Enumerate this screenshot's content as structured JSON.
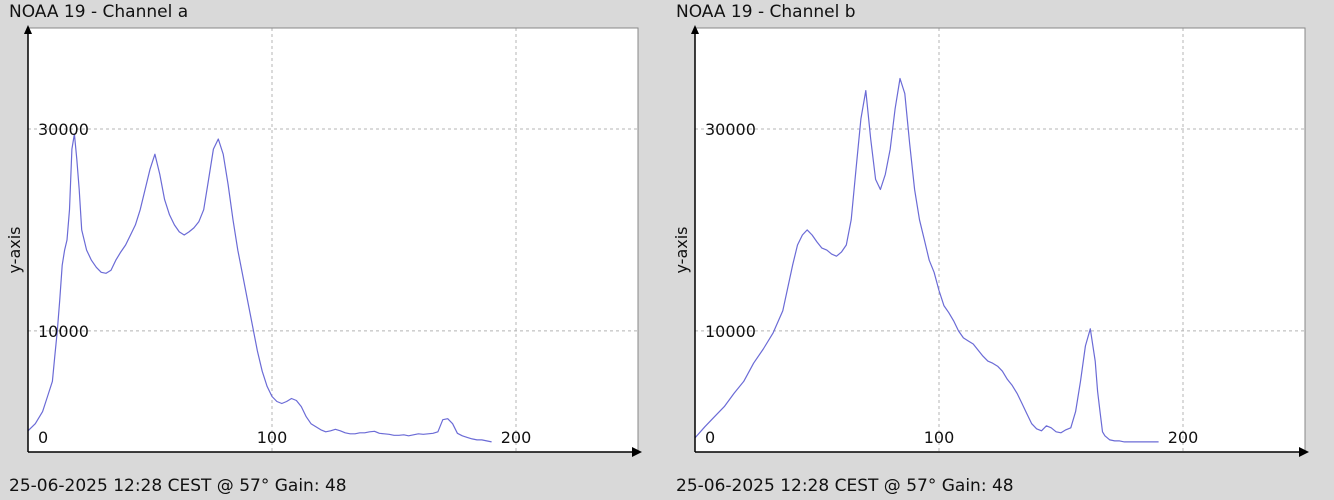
{
  "chart_data": [
    {
      "type": "line",
      "title": "NOAA 19 - Channel a",
      "footer": "25-06-2025 12:28 CEST @ 57° Gain: 48",
      "ylabel": "y-axis",
      "xlabel": "",
      "xlim": [
        0,
        250
      ],
      "ylim": [
        -2000,
        40000
      ],
      "xticks": [
        0,
        100,
        200
      ],
      "yticks": [
        10000,
        30000
      ],
      "xtick_labels": [
        "0",
        "100",
        "200"
      ],
      "ytick_labels": [
        "10000",
        "30000"
      ],
      "grid": true,
      "line_color": "#6b6bd6",
      "series": [
        {
          "x": [
            0,
            3,
            6,
            8,
            10,
            11,
            12,
            13,
            14,
            15,
            16,
            17,
            18,
            19,
            20,
            21,
            22,
            24,
            26,
            28,
            30,
            32,
            34,
            36,
            38,
            40,
            42,
            44,
            46,
            48,
            50,
            52,
            54,
            56,
            58,
            60,
            62,
            64,
            66,
            68,
            70,
            72,
            74,
            76,
            78,
            80,
            82,
            84,
            86,
            88,
            90,
            92,
            94,
            96,
            98,
            100,
            102,
            104,
            106,
            108,
            110,
            112,
            114,
            116,
            118,
            120,
            122,
            124,
            126,
            128,
            130,
            132,
            134,
            136,
            138,
            140,
            142,
            144,
            146,
            148,
            150,
            152,
            154,
            156,
            158,
            160,
            162,
            164,
            166,
            168,
            170,
            172,
            174,
            176,
            178,
            180,
            182,
            184,
            186,
            188,
            190
          ],
          "y": [
            100,
            800,
            2000,
            3500,
            5000,
            7500,
            10000,
            13000,
            16500,
            18000,
            19000,
            22000,
            28000,
            29500,
            27000,
            24000,
            20000,
            18000,
            17000,
            16300,
            15800,
            15700,
            16000,
            17000,
            17800,
            18500,
            19500,
            20500,
            22000,
            24000,
            26000,
            27500,
            25500,
            23000,
            21500,
            20500,
            19800,
            19500,
            19800,
            20200,
            20800,
            22000,
            25000,
            28000,
            29000,
            27500,
            24500,
            21000,
            18000,
            15500,
            13000,
            10500,
            8000,
            6000,
            4500,
            3500,
            3000,
            2800,
            3000,
            3300,
            3100,
            2500,
            1500,
            800,
            500,
            200,
            0,
            100,
            250,
            100,
            -100,
            -200,
            -200,
            -100,
            -100,
            0,
            50,
            -150,
            -200,
            -250,
            -350,
            -350,
            -300,
            -400,
            -300,
            -200,
            -250,
            -200,
            -150,
            0,
            1200,
            1300,
            800,
            -150,
            -400,
            -550,
            -700,
            -800,
            -800,
            -900,
            -1000
          ]
        }
      ]
    },
    {
      "type": "line",
      "title": "NOAA 19 - Channel b",
      "footer": "25-06-2025 12:28 CEST @ 57° Gain: 48",
      "ylabel": "y-axis",
      "xlabel": "",
      "xlim": [
        0,
        250
      ],
      "ylim": [
        -2000,
        40000
      ],
      "xticks": [
        0,
        100,
        200
      ],
      "yticks": [
        10000,
        30000
      ],
      "xtick_labels": [
        "0",
        "100",
        "200"
      ],
      "ytick_labels": [
        "10000",
        "30000"
      ],
      "grid": true,
      "line_color": "#6b6bd6",
      "series": [
        {
          "x": [
            0,
            4,
            8,
            12,
            16,
            20,
            24,
            28,
            32,
            36,
            40,
            42,
            44,
            46,
            48,
            50,
            52,
            54,
            56,
            58,
            60,
            62,
            64,
            66,
            68,
            70,
            72,
            74,
            76,
            78,
            80,
            82,
            84,
            86,
            88,
            90,
            92,
            94,
            96,
            98,
            100,
            102,
            104,
            106,
            108,
            110,
            112,
            114,
            116,
            118,
            120,
            122,
            124,
            126,
            128,
            130,
            132,
            134,
            136,
            138,
            140,
            142,
            144,
            146,
            148,
            150,
            152,
            154,
            156,
            158,
            160,
            162,
            164,
            165,
            166,
            167,
            168,
            170,
            172,
            174,
            176,
            178,
            180,
            185,
            190
          ],
          "y": [
            -600,
            500,
            1500,
            2500,
            3800,
            5000,
            6800,
            8200,
            9800,
            12000,
            16500,
            18500,
            19500,
            20000,
            19500,
            18800,
            18200,
            18000,
            17600,
            17400,
            17800,
            18500,
            21000,
            26000,
            31000,
            33800,
            29000,
            25000,
            24000,
            25500,
            28000,
            32000,
            35000,
            33500,
            28500,
            24000,
            21000,
            19000,
            17000,
            15800,
            14000,
            12500,
            11800,
            11000,
            10000,
            9300,
            9000,
            8700,
            8100,
            7500,
            7000,
            6800,
            6500,
            6000,
            5200,
            4600,
            3800,
            2800,
            1800,
            800,
            300,
            100,
            600,
            400,
            0,
            -100,
            200,
            400,
            2000,
            5000,
            8500,
            10200,
            7000,
            4000,
            2000,
            0,
            -400,
            -800,
            -900,
            -900,
            -1000,
            -1000,
            -1000,
            -1000,
            -1000
          ]
        }
      ]
    }
  ]
}
